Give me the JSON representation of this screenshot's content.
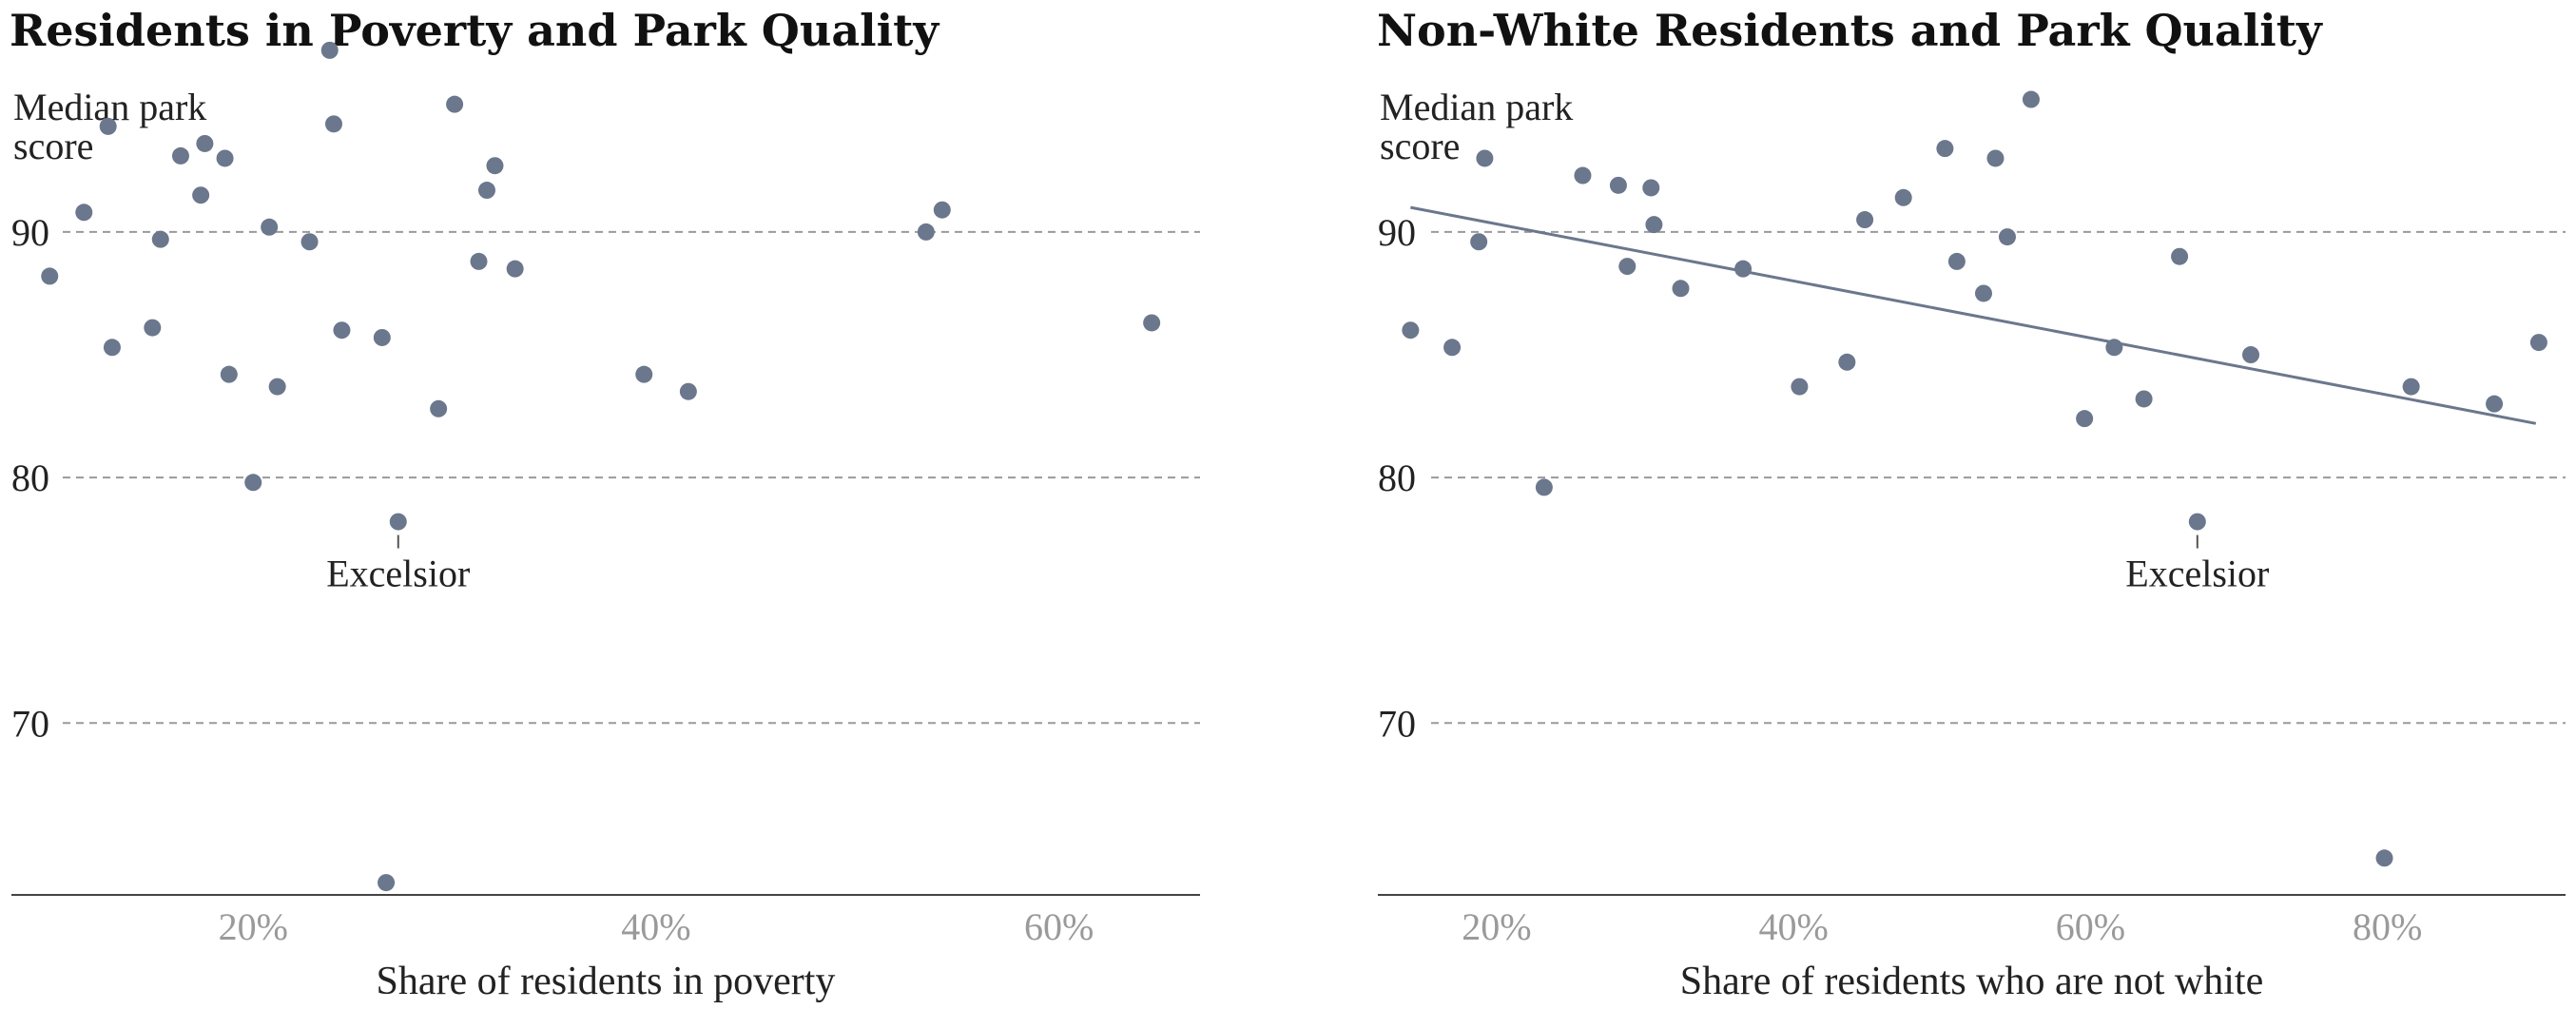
{
  "colors": {
    "point": "#6b778c",
    "grid": "#9a9a9a",
    "axis": "#444444"
  },
  "chart_data": [
    {
      "type": "scatter",
      "title": "Residents in Poverty and Park Quality",
      "ylabel": "Median park score",
      "xlabel": "Share of residents in poverty",
      "ylim": [
        63,
        94.8
      ],
      "xlim": [
        8,
        67
      ],
      "yticks": [
        {
          "value": 70,
          "label": "70"
        },
        {
          "value": 80,
          "label": "80"
        },
        {
          "value": 90,
          "label": "90"
        }
      ],
      "xticks": [
        {
          "value": 20,
          "label": "20%"
        },
        {
          "value": 40,
          "label": "40%"
        },
        {
          "value": 60,
          "label": "60%"
        }
      ],
      "grid": true,
      "annotation": {
        "text": "Excelsior",
        "x": 27.2,
        "y": 78.2
      },
      "points": [
        {
          "x": 9.9,
          "y": 88.2
        },
        {
          "x": 11.6,
          "y": 90.8
        },
        {
          "x": 12.8,
          "y": 94.3
        },
        {
          "x": 13.0,
          "y": 85.3
        },
        {
          "x": 15.0,
          "y": 86.1
        },
        {
          "x": 15.4,
          "y": 89.7
        },
        {
          "x": 16.4,
          "y": 93.1
        },
        {
          "x": 17.4,
          "y": 91.5
        },
        {
          "x": 17.6,
          "y": 93.6
        },
        {
          "x": 18.6,
          "y": 93.0
        },
        {
          "x": 18.8,
          "y": 84.2
        },
        {
          "x": 20.0,
          "y": 79.8
        },
        {
          "x": 20.8,
          "y": 90.2
        },
        {
          "x": 21.2,
          "y": 83.7
        },
        {
          "x": 22.8,
          "y": 89.6
        },
        {
          "x": 23.8,
          "y": 97.4
        },
        {
          "x": 24.0,
          "y": 94.4
        },
        {
          "x": 24.4,
          "y": 86.0
        },
        {
          "x": 26.4,
          "y": 85.7
        },
        {
          "x": 27.2,
          "y": 78.2
        },
        {
          "x": 26.6,
          "y": 63.5
        },
        {
          "x": 29.2,
          "y": 82.8
        },
        {
          "x": 30.0,
          "y": 95.2
        },
        {
          "x": 31.2,
          "y": 88.8
        },
        {
          "x": 31.6,
          "y": 91.7
        },
        {
          "x": 32.0,
          "y": 92.7
        },
        {
          "x": 33.0,
          "y": 88.5
        },
        {
          "x": 39.4,
          "y": 84.2
        },
        {
          "x": 41.6,
          "y": 83.5
        },
        {
          "x": 53.4,
          "y": 90.0
        },
        {
          "x": 54.2,
          "y": 90.9
        },
        {
          "x": 64.6,
          "y": 86.3
        }
      ]
    },
    {
      "type": "scatter",
      "title": "Non-White Residents and Park Quality",
      "ylabel": "Median park score",
      "xlabel": "Share of residents who are not white",
      "ylim": [
        63,
        94.8
      ],
      "xlim": [
        12,
        92
      ],
      "yticks": [
        {
          "value": 70,
          "label": "70"
        },
        {
          "value": 80,
          "label": "80"
        },
        {
          "value": 90,
          "label": "90"
        }
      ],
      "xticks": [
        {
          "value": 20,
          "label": "20%"
        },
        {
          "value": 40,
          "label": "40%"
        },
        {
          "value": 60,
          "label": "60%"
        },
        {
          "value": 80,
          "label": "80%"
        }
      ],
      "grid": true,
      "annotation": {
        "text": "Excelsior",
        "x": 67.2,
        "y": 78.2
      },
      "trendline": {
        "x": [
          14.2,
          90.0
        ],
        "y": [
          91.0,
          82.2
        ]
      },
      "points": [
        {
          "x": 14.2,
          "y": 86.0
        },
        {
          "x": 17.0,
          "y": 85.3
        },
        {
          "x": 18.8,
          "y": 89.6
        },
        {
          "x": 19.2,
          "y": 93.0
        },
        {
          "x": 23.2,
          "y": 79.6
        },
        {
          "x": 25.8,
          "y": 92.3
        },
        {
          "x": 28.2,
          "y": 91.9
        },
        {
          "x": 28.8,
          "y": 88.6
        },
        {
          "x": 30.4,
          "y": 91.8
        },
        {
          "x": 30.6,
          "y": 90.3
        },
        {
          "x": 32.4,
          "y": 87.7
        },
        {
          "x": 36.6,
          "y": 88.5
        },
        {
          "x": 40.4,
          "y": 83.7
        },
        {
          "x": 43.6,
          "y": 84.7
        },
        {
          "x": 44.8,
          "y": 90.5
        },
        {
          "x": 47.4,
          "y": 91.4
        },
        {
          "x": 50.2,
          "y": 93.4
        },
        {
          "x": 51.0,
          "y": 88.8
        },
        {
          "x": 52.8,
          "y": 87.5
        },
        {
          "x": 53.6,
          "y": 93.0
        },
        {
          "x": 54.4,
          "y": 89.8
        },
        {
          "x": 56.0,
          "y": 95.4
        },
        {
          "x": 59.6,
          "y": 82.4
        },
        {
          "x": 61.6,
          "y": 85.3
        },
        {
          "x": 63.6,
          "y": 83.2
        },
        {
          "x": 66.0,
          "y": 89.0
        },
        {
          "x": 67.2,
          "y": 78.2
        },
        {
          "x": 70.8,
          "y": 85.0
        },
        {
          "x": 79.8,
          "y": 64.5
        },
        {
          "x": 81.6,
          "y": 83.7
        },
        {
          "x": 87.2,
          "y": 83.0
        },
        {
          "x": 90.2,
          "y": 85.5
        }
      ]
    }
  ]
}
